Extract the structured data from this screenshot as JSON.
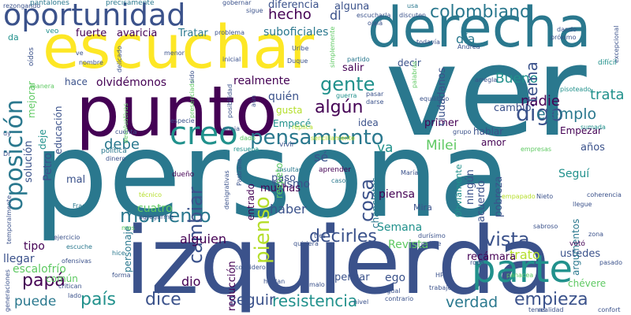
{
  "palette": {
    "dark_purple": "#440154",
    "indigo": "#3b528b",
    "teal": "#21918c",
    "green": "#5ec962",
    "yellow_green": "#b5de2b",
    "yellow": "#fde725"
  },
  "words": [
    {
      "text": "persona",
      "color": "#2a788e"
    },
    {
      "text": "ver",
      "color": "#2a788e"
    },
    {
      "text": "izquierda",
      "color": "#3b528b"
    },
    {
      "text": "punto",
      "color": "#440154"
    },
    {
      "text": "escuchar",
      "color": "#fde725"
    },
    {
      "text": "derecha",
      "color": "#2a788e"
    },
    {
      "text": "oportunidad",
      "color": "#3b528b"
    },
    {
      "text": "parte",
      "color": "#21918c"
    },
    {
      "text": "creo",
      "color": "#21918c"
    },
    {
      "text": "oposición",
      "color": "#2a788e"
    },
    {
      "text": "pensamiento",
      "color": "#2a788e"
    },
    {
      "text": "colombiano",
      "color": "#2a788e"
    },
    {
      "text": "momento",
      "color": "#2a788e"
    },
    {
      "text": "algún",
      "color": "#440154"
    },
    {
      "text": "digo",
      "color": "#3b528b"
    },
    {
      "text": "vista",
      "color": "#3b528b"
    },
    {
      "text": "gente",
      "color": "#21918c"
    },
    {
      "text": "resistencia",
      "color": "#21918c"
    },
    {
      "text": "empieza",
      "color": "#3b528b"
    },
    {
      "text": "decirles",
      "color": "#3b528b"
    },
    {
      "text": "dice",
      "color": "#3b528b"
    },
    {
      "text": "país",
      "color": "#21918c"
    },
    {
      "text": "papá",
      "color": "#440154"
    },
    {
      "text": "cambiar",
      "color": "#3b528b"
    },
    {
      "text": "pienso",
      "color": "#b5de2b"
    },
    {
      "text": "cosa",
      "color": "#3b528b"
    },
    {
      "text": "hecho",
      "color": "#440154"
    },
    {
      "text": "trata",
      "color": "#21918c"
    },
    {
      "text": "ejemplo",
      "color": "#2a788e"
    },
    {
      "text": "nadie",
      "color": "#440154"
    },
    {
      "text": "Bueno",
      "color": "#21918c"
    },
    {
      "text": "Milei",
      "color": "#5ec962"
    },
    {
      "text": "tema",
      "color": "#3b528b"
    },
    {
      "text": "verdad",
      "color": "#2a788e"
    },
    {
      "text": "seguir",
      "color": "#3b528b"
    },
    {
      "text": "puede",
      "color": "#2a788e"
    },
    {
      "text": "deje",
      "color": "#21918c"
    },
    {
      "text": "debe",
      "color": "#2a788e"
    },
    {
      "text": "diferencia",
      "color": "#3b528b"
    },
    {
      "text": "alguna",
      "color": "#3b528b"
    },
    {
      "text": "dl",
      "color": "#3b528b"
    },
    {
      "text": "día",
      "color": "#2a788e"
    },
    {
      "text": "va",
      "color": "#21918c"
    },
    {
      "text": "sé",
      "color": "#3b528b"
    },
    {
      "text": "trato",
      "color": "#b5de2b"
    },
    {
      "text": "dio",
      "color": "#440154"
    },
    {
      "text": "haber",
      "color": "#3b528b"
    },
    {
      "text": "alguien",
      "color": "#440154"
    },
    {
      "text": "mismo",
      "color": "#3b528b"
    },
    {
      "text": "piensa",
      "color": "#440154"
    },
    {
      "text": "realmente",
      "color": "#440154"
    },
    {
      "text": "quién",
      "color": "#3b528b"
    },
    {
      "text": "olvidémonos",
      "color": "#440154"
    },
    {
      "text": "suboficiales",
      "color": "#2a788e"
    },
    {
      "text": "fuerte",
      "color": "#440154"
    },
    {
      "text": "avaricia",
      "color": "#440154"
    },
    {
      "text": "Tratar",
      "color": "#2a788e"
    },
    {
      "text": "cambio",
      "color": "#3b528b"
    },
    {
      "text": "ustedes",
      "color": "#3b528b"
    },
    {
      "text": "recámara",
      "color": "#440154"
    },
    {
      "text": "llegar",
      "color": "#3b528b"
    },
    {
      "text": "tipo",
      "color": "#440154"
    },
    {
      "text": "escalofrío",
      "color": "#5ec962"
    },
    {
      "text": "común",
      "color": "#5ec962"
    },
    {
      "text": "reducción",
      "color": "#440154"
    },
    {
      "text": "ego",
      "color": "#3b528b"
    },
    {
      "text": "pensar",
      "color": "#3b528b"
    },
    {
      "text": "Semana",
      "color": "#21918c"
    },
    {
      "text": "Revista",
      "color": "#5ec962"
    },
    {
      "text": "Petro",
      "color": "#3b528b"
    },
    {
      "text": "educación",
      "color": "#3b528b"
    },
    {
      "text": "solución",
      "color": "#3b528b"
    },
    {
      "text": "hace",
      "color": "#3b528b"
    },
    {
      "text": "mal",
      "color": "#3b528b"
    },
    {
      "text": "personaje",
      "color": "#2a788e"
    },
    {
      "text": "cuatro",
      "color": "#5ec962"
    },
    {
      "text": "muchas",
      "color": "#440154"
    },
    {
      "text": "paso",
      "color": "#3b528b"
    },
    {
      "text": "entrado",
      "color": "#440154"
    },
    {
      "text": "respeto",
      "color": "#5ec962"
    },
    {
      "text": "ningún",
      "color": "#3b528b"
    },
    {
      "text": "acuerdo",
      "color": "#3b528b"
    },
    {
      "text": "pobreza",
      "color": "#3b528b"
    },
    {
      "text": "Seguí",
      "color": "#21918c"
    },
    {
      "text": "años",
      "color": "#3b528b"
    },
    {
      "text": "amor",
      "color": "#440154"
    },
    {
      "text": "Empezar",
      "color": "#440154"
    },
    {
      "text": "hablar",
      "color": "#3b528b"
    },
    {
      "text": "primer",
      "color": "#440154"
    },
    {
      "text": "ciudadanos",
      "color": "#3b528b"
    },
    {
      "text": "salir",
      "color": "#440154"
    },
    {
      "text": "decir",
      "color": "#3b528b"
    },
    {
      "text": "idea",
      "color": "#3b528b"
    },
    {
      "text": "gusta",
      "color": "#b5de2b"
    },
    {
      "text": "Empecé",
      "color": "#21918c"
    },
    {
      "text": "chancletas",
      "color": "#2a788e"
    },
    {
      "text": "Obviamente",
      "color": "#21918c"
    },
    {
      "text": "argumentos",
      "color": "#2a788e"
    },
    {
      "text": "chévere",
      "color": "#5ec962"
    },
    {
      "text": "Mira",
      "color": "#3b528b"
    },
    {
      "text": "mejorar",
      "color": "#5ec962"
    },
    {
      "text": "oídos",
      "color": "#3b528b"
    },
    {
      "text": "veo",
      "color": "#21918c"
    },
    {
      "text": "da",
      "color": "#21918c"
    },
    {
      "text": "pantalones",
      "color": "#2a788e"
    },
    {
      "text": "precisamente",
      "color": "#2a788e"
    },
    {
      "text": "rezongando",
      "color": "#3b528b"
    },
    {
      "text": "gobernar",
      "color": "#3b528b"
    },
    {
      "text": "sigue",
      "color": "#3b528b"
    },
    {
      "text": "usa",
      "color": "#2a788e"
    },
    {
      "text": "escucharla",
      "color": "#3b528b"
    },
    {
      "text": "discuten",
      "color": "#3b528b"
    },
    {
      "text": "todavía",
      "color": "#3b528b"
    },
    {
      "text": "ojalá",
      "color": "#3b528b"
    },
    {
      "text": "dando",
      "color": "#3b528b"
    },
    {
      "text": "próximo",
      "color": "#3b528b"
    },
    {
      "text": "excepcional",
      "color": "#3b528b"
    },
    {
      "text": "difícil",
      "color": "#21918c"
    },
    {
      "text": "Andrea",
      "color": "#3b528b"
    },
    {
      "text": "Uribe",
      "color": "#3b528b"
    },
    {
      "text": "Duque",
      "color": "#3b528b"
    },
    {
      "text": "partido",
      "color": "#2a788e"
    },
    {
      "text": "problema",
      "color": "#3b528b"
    },
    {
      "text": "nombre",
      "color": "#3b528b"
    },
    {
      "text": "menor",
      "color": "#3b528b"
    },
    {
      "text": "delicado",
      "color": "#3b528b"
    },
    {
      "text": "inicial",
      "color": "#3b528b"
    },
    {
      "text": "arregla",
      "color": "#3b528b"
    },
    {
      "text": "equilibrio",
      "color": "#3b528b"
    },
    {
      "text": "pisoteado",
      "color": "#21918c"
    },
    {
      "text": "sumada",
      "color": "#21918c"
    },
    {
      "text": "pasar",
      "color": "#3b528b"
    },
    {
      "text": "darse",
      "color": "#3b528b"
    },
    {
      "text": "guerra",
      "color": "#21918c"
    },
    {
      "text": "grupo",
      "color": "#3b528b"
    },
    {
      "text": "réplica",
      "color": "#b5de2b"
    },
    {
      "text": "empresas",
      "color": "#5ec962"
    },
    {
      "text": "política",
      "color": "#2a788e"
    },
    {
      "text": "dinero",
      "color": "#3b528b"
    },
    {
      "text": "cuenta",
      "color": "#3b528b"
    },
    {
      "text": "especie",
      "color": "#3b528b"
    },
    {
      "text": "enoja",
      "color": "#3b528b"
    },
    {
      "text": "dado",
      "color": "#5ec962"
    },
    {
      "text": "resuena",
      "color": "#21918c"
    },
    {
      "text": "sencillamente",
      "color": "#b5de2b"
    },
    {
      "text": "vivir",
      "color": "#3b528b"
    },
    {
      "text": "insultar",
      "color": "#2a788e"
    },
    {
      "text": "caso",
      "color": "#2a788e"
    },
    {
      "text": "aprender",
      "color": "#440154"
    },
    {
      "text": "María",
      "color": "#3b528b"
    },
    {
      "text": "dueño",
      "color": "#440154"
    },
    {
      "text": "técnico",
      "color": "#b5de2b"
    },
    {
      "text": "agregarme",
      "color": "#3b528b"
    },
    {
      "text": "Frases",
      "color": "#2a788e"
    },
    {
      "text": "mes",
      "color": "#5ec962"
    },
    {
      "text": "ejercicio",
      "color": "#3b528b"
    },
    {
      "text": "escuche",
      "color": "#2a788e"
    },
    {
      "text": "ofensivas",
      "color": "#3b528b"
    },
    {
      "text": "tres",
      "color": "#3b528b"
    },
    {
      "text": "quisiera",
      "color": "#3b528b"
    },
    {
      "text": "durísimo",
      "color": "#3b528b"
    },
    {
      "text": "quiere",
      "color": "#3b528b"
    },
    {
      "text": "sabroso",
      "color": "#3b528b"
    },
    {
      "text": "ropa",
      "color": "#3b528b"
    },
    {
      "text": "votó",
      "color": "#440154"
    },
    {
      "text": "zona",
      "color": "#3b528b"
    },
    {
      "text": "hice",
      "color": "#2a788e"
    },
    {
      "text": "considero",
      "color": "#3b528b"
    },
    {
      "text": "hablan",
      "color": "#3b528b"
    },
    {
      "text": "malo",
      "color": "#3b528b"
    },
    {
      "text": "HPs",
      "color": "#3b528b"
    },
    {
      "text": "igual",
      "color": "#3b528b"
    },
    {
      "text": "contrario",
      "color": "#3b528b"
    },
    {
      "text": "trabajé",
      "color": "#3b528b"
    },
    {
      "text": "forma",
      "color": "#3b528b"
    },
    {
      "text": "critican",
      "color": "#3b528b"
    },
    {
      "text": "lado",
      "color": "#3b528b"
    },
    {
      "text": "generaciones",
      "color": "#3b528b"
    },
    {
      "text": "tenas",
      "color": "#3b528b"
    },
    {
      "text": "realidad",
      "color": "#3b528b"
    },
    {
      "text": "confort",
      "color": "#3b528b"
    },
    {
      "text": "llegue",
      "color": "#3b528b"
    },
    {
      "text": "Nieto",
      "color": "#3b528b"
    },
    {
      "text": "empapado",
      "color": "#b5de2b"
    },
    {
      "text": "denigrativas",
      "color": "#3b528b"
    },
    {
      "text": "Pastrana",
      "color": "#3b528b"
    },
    {
      "text": "coherencia",
      "color": "#3b528b"
    },
    {
      "text": "temporalmente",
      "color": "#3b528b"
    },
    {
      "text": "posibilidad",
      "color": "#3b528b"
    },
    {
      "text": "presenciado",
      "color": "#5ec962"
    },
    {
      "text": "devaluativas",
      "color": "#5ec962"
    },
    {
      "text": "simplemente",
      "color": "#5ec962"
    },
    {
      "text": "palabras",
      "color": "#5ec962"
    },
    {
      "text": "manera",
      "color": "#5ec962"
    },
    {
      "text": "sido",
      "color": "#3b528b"
    },
    {
      "text": "ve",
      "color": "#3b528b"
    },
    {
      "text": "aún",
      "color": "#3b528b"
    },
    {
      "text": "uy",
      "color": "#3b528b"
    },
    {
      "text": "Dr",
      "color": "#3b528b"
    },
    {
      "text": "nivel",
      "color": "#3b528b"
    },
    {
      "text": "pasado",
      "color": "#3b528b"
    },
    {
      "text": "panacea",
      "color": "#5ec962"
    }
  ]
}
